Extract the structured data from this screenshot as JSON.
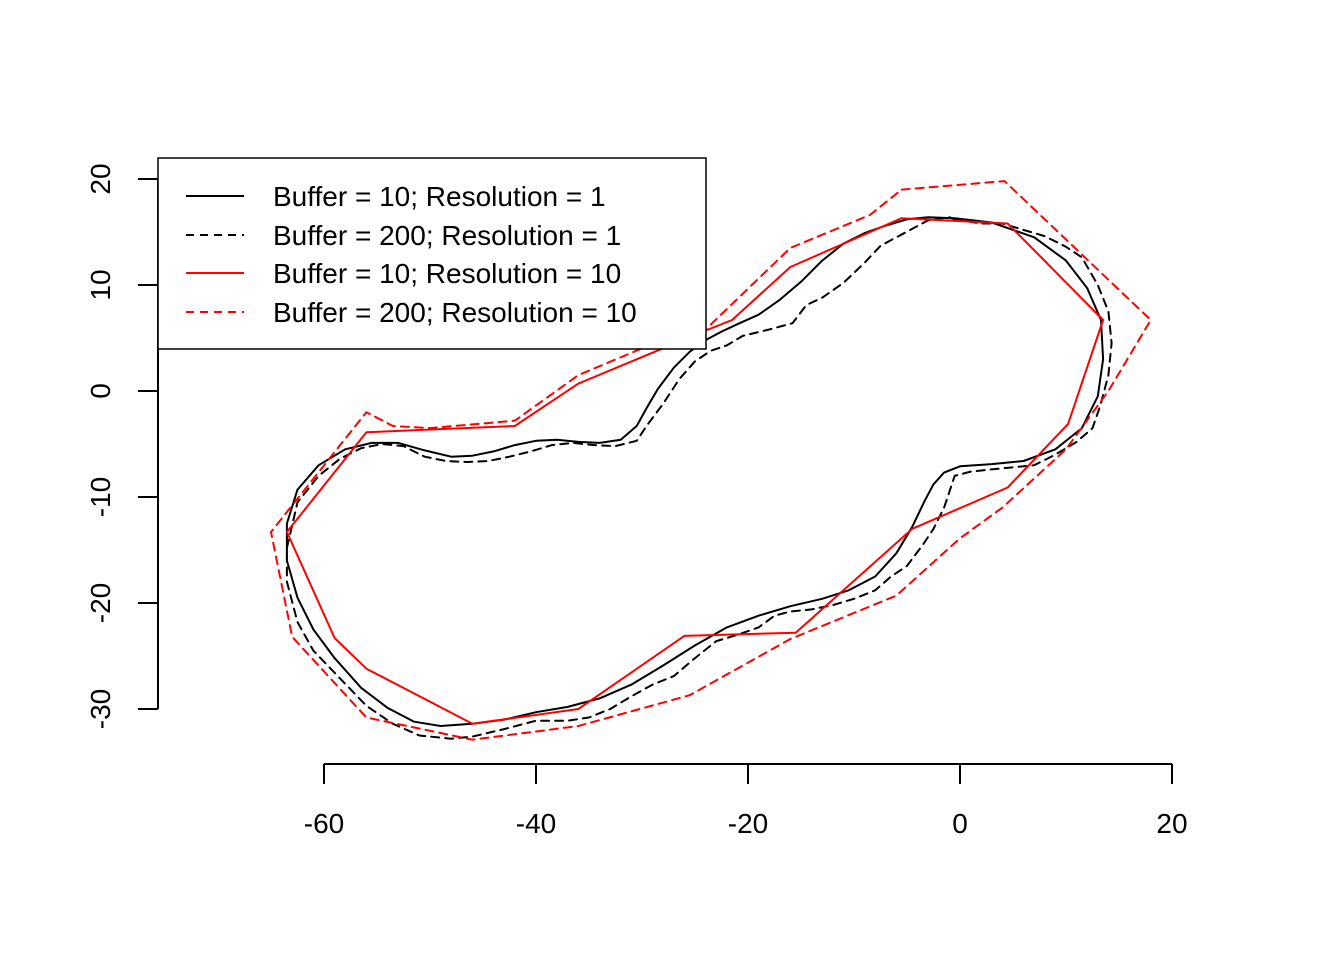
{
  "chart_data": {
    "type": "line",
    "title": "",
    "xlabel": "",
    "ylabel": "",
    "xlim": [
      -60,
      20
    ],
    "ylim": [
      -30,
      20
    ],
    "x_ticks": [
      -60,
      -40,
      -20,
      0,
      20
    ],
    "y_ticks": [
      -30,
      -20,
      -10,
      0,
      10,
      20
    ],
    "grid": false,
    "legend_position": "top-left",
    "series": [
      {
        "name": "Buffer = 10; Resolution = 1",
        "color": "#000000",
        "dash": "solid",
        "x": [
          -0.5,
          3,
          7,
          10,
          12,
          13.3,
          13.5,
          13,
          11.5,
          9,
          6,
          3,
          0,
          -1.5,
          -2.5,
          -3.3,
          -4.5,
          -6,
          -8,
          -10.5,
          -13,
          -16,
          -19,
          -22,
          -25,
          -28,
          -31,
          -34,
          -37,
          -40,
          -43,
          -46,
          -49,
          -51.5,
          -54,
          -56.5,
          -59,
          -61,
          -62.5,
          -63.5,
          -63.5,
          -62.5,
          -60.5,
          -58,
          -55.5,
          -53,
          -50.5,
          -48,
          -46,
          -44,
          -42,
          -40,
          -38,
          -36,
          -34,
          -32,
          -30.5,
          -29.5,
          -28.5,
          -27,
          -25.5,
          -24,
          -22.5,
          -21,
          -19,
          -17,
          -15,
          -13,
          -11,
          -9,
          -7,
          -5,
          -3,
          -0.5
        ],
        "y": [
          16.3,
          15.9,
          14.5,
          12.3,
          9.7,
          6.7,
          3,
          -0.5,
          -3.5,
          -5.5,
          -6.6,
          -6.9,
          -7.1,
          -7.7,
          -8.8,
          -10.3,
          -12.8,
          -15.3,
          -17.5,
          -18.8,
          -19.6,
          -20.3,
          -21.2,
          -22.3,
          -24,
          -25.9,
          -27.7,
          -29,
          -29.8,
          -30.3,
          -31,
          -31.4,
          -31.6,
          -31.2,
          -29.9,
          -28,
          -25.2,
          -22.5,
          -19.5,
          -16,
          -12.5,
          -9.3,
          -7,
          -5.5,
          -4.9,
          -4.9,
          -5.6,
          -6.2,
          -6.1,
          -5.7,
          -5.1,
          -4.7,
          -4.6,
          -4.8,
          -4.9,
          -4.6,
          -3.3,
          -1.5,
          0.2,
          2.2,
          3.7,
          4.8,
          5.6,
          6.3,
          7.2,
          8.6,
          10.3,
          12.3,
          13.9,
          14.9,
          15.6,
          16.2,
          16.4,
          16.3
        ]
      },
      {
        "name": "Buffer = 200; Resolution = 1",
        "color": "#000000",
        "dash": "dashed",
        "x": [
          -0.5,
          2,
          4,
          6,
          8,
          10,
          11.5,
          13,
          14,
          14.3,
          14,
          13.2,
          12.5,
          11,
          9,
          7,
          5,
          3,
          1,
          -0.5,
          -1.5,
          -2.5,
          -3.5,
          -5,
          -6.5,
          -8,
          -10,
          -12,
          -14,
          -16,
          -17.5,
          -19,
          -21,
          -23,
          -25,
          -27,
          -29,
          -31,
          -33,
          -35,
          -37,
          -40,
          -43,
          -46,
          -48,
          -51,
          -53.5,
          -56,
          -58.5,
          -61,
          -62.5,
          -63.5,
          -63.5,
          -62.5,
          -60.5,
          -58.5,
          -56.5,
          -54.5,
          -52.5,
          -50.5,
          -48.5,
          -46.5,
          -44.5,
          -42.5,
          -40.5,
          -38.5,
          -36.5,
          -34.5,
          -32.5,
          -30.5,
          -29.5,
          -28,
          -26.5,
          -25,
          -23.5,
          -22,
          -20.5,
          -18,
          -15.8,
          -14.5,
          -13,
          -11,
          -9,
          -7.5,
          -6,
          -4.5,
          -3,
          -1,
          -0.5
        ],
        "y": [
          16.2,
          15.8,
          15.8,
          15.2,
          14.6,
          13.6,
          12.6,
          10,
          7.5,
          4.5,
          1.5,
          -1.5,
          -3.5,
          -4.8,
          -6,
          -7,
          -7.2,
          -7.4,
          -7.6,
          -8,
          -11,
          -13,
          -14.5,
          -16.5,
          -17.5,
          -18.8,
          -19.6,
          -20.2,
          -20.6,
          -20.8,
          -21.2,
          -22.3,
          -23,
          -23.6,
          -25.2,
          -26.9,
          -27.7,
          -28.8,
          -30,
          -30.8,
          -31.1,
          -31.1,
          -31.9,
          -32.6,
          -32.8,
          -32.5,
          -31.4,
          -29.7,
          -27.1,
          -24.5,
          -21.8,
          -18,
          -14.8,
          -10.5,
          -8,
          -6.4,
          -5.4,
          -5,
          -5.2,
          -6.2,
          -6.6,
          -6.7,
          -6.6,
          -6.2,
          -5.7,
          -5.1,
          -4.9,
          -5.1,
          -5.2,
          -4.7,
          -3.2,
          -1.2,
          1.1,
          2.8,
          3.8,
          4.3,
          5.2,
          5.8,
          6.4,
          8.1,
          8.8,
          10.2,
          12.1,
          13.7,
          14.5,
          15.3,
          16.1,
          16.4,
          16.2
        ]
      },
      {
        "name": "Buffer = 10; Resolution = 10",
        "color": "#ff0000",
        "dash": "solid",
        "x": [
          -5.5,
          4.5,
          13.5,
          10.2,
          4.5,
          -4.5,
          -15.5,
          -26,
          -36,
          -46,
          -56,
          -59,
          -63.5,
          -56,
          -42,
          -36,
          -24,
          -21.5,
          -16,
          -5.5
        ],
        "y": [
          16.3,
          15.8,
          6.7,
          -3.1,
          -9.1,
          -13,
          -22.8,
          -23.1,
          -30,
          -31.4,
          -26.2,
          -23.3,
          -13.3,
          -3.9,
          -3.3,
          0.7,
          5.7,
          6.7,
          11.7,
          16.3
        ]
      },
      {
        "name": "Buffer = 200; Resolution = 10",
        "color": "#ff0000",
        "dash": "dashed",
        "x": [
          -5.5,
          4.2,
          18,
          14,
          10,
          4,
          0,
          -6,
          -16,
          -25.5,
          -36,
          -46,
          -56,
          -63,
          -65,
          -56,
          -53.5,
          -50,
          -42,
          -36,
          -26,
          -24,
          -16,
          -8.5,
          -5.5
        ],
        "y": [
          19,
          19.8,
          6.7,
          0,
          -5.5,
          -11,
          -13.9,
          -19.3,
          -23.4,
          -28.7,
          -31.6,
          -32.9,
          -30.8,
          -23.2,
          -13.3,
          -2,
          -3.3,
          -3.5,
          -2.8,
          1.5,
          5.7,
          5.8,
          13.5,
          16.6,
          19
        ]
      }
    ]
  }
}
